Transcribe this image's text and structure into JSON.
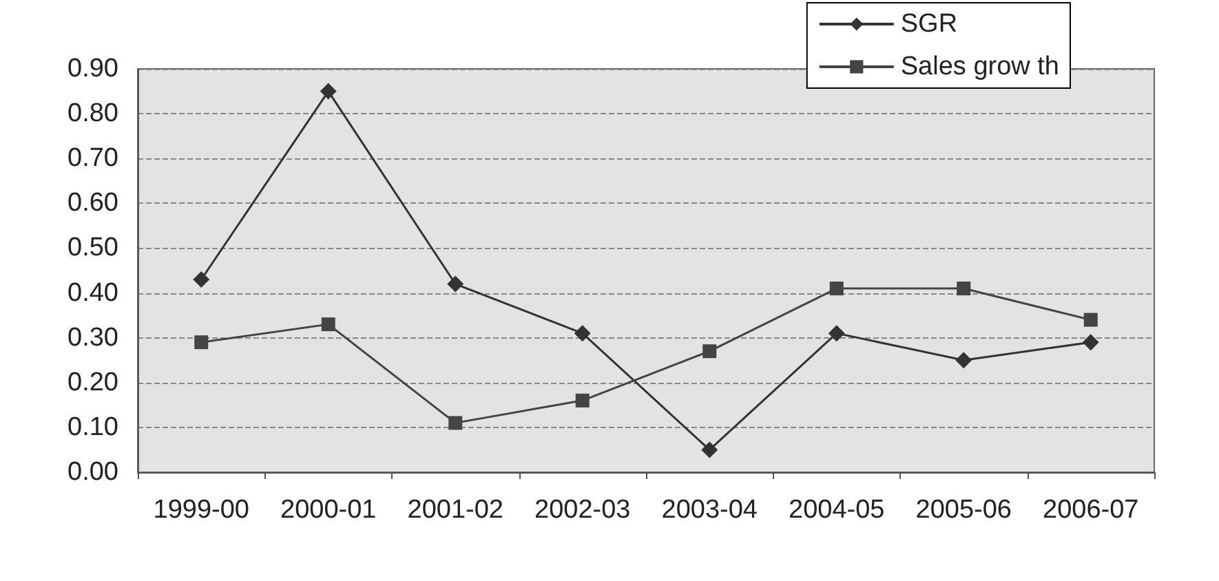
{
  "chart_data": {
    "type": "line",
    "categories": [
      "1999-00",
      "2000-01",
      "2001-02",
      "2002-03",
      "2003-04",
      "2004-05",
      "2005-06",
      "2006-07"
    ],
    "series": [
      {
        "name": "SGR",
        "color": "#333333",
        "marker": "diamond",
        "values": [
          0.43,
          0.85,
          0.42,
          0.31,
          0.05,
          0.31,
          0.25,
          0.29
        ]
      },
      {
        "name": "Sales grow th",
        "color": "#444444",
        "marker": "square",
        "values": [
          0.29,
          0.33,
          0.11,
          0.16,
          0.27,
          0.41,
          0.41,
          0.34
        ]
      }
    ],
    "ylim": [
      0,
      0.9
    ],
    "yticks": [
      {
        "value": 0,
        "label": "0.00"
      },
      {
        "value": 0.1,
        "label": "0.10"
      },
      {
        "value": 0.2,
        "label": "0.20"
      },
      {
        "value": 0.3,
        "label": "0.30"
      },
      {
        "value": 0.4,
        "label": "0.40"
      },
      {
        "value": 0.5,
        "label": "0.50"
      },
      {
        "value": 0.6,
        "label": "0.60"
      },
      {
        "value": 0.7,
        "label": "0.70"
      },
      {
        "value": 0.8,
        "label": "0.80"
      },
      {
        "value": 0.9,
        "label": "0.90"
      }
    ],
    "grid": "y",
    "legend": "top right",
    "line_style": "solid"
  }
}
